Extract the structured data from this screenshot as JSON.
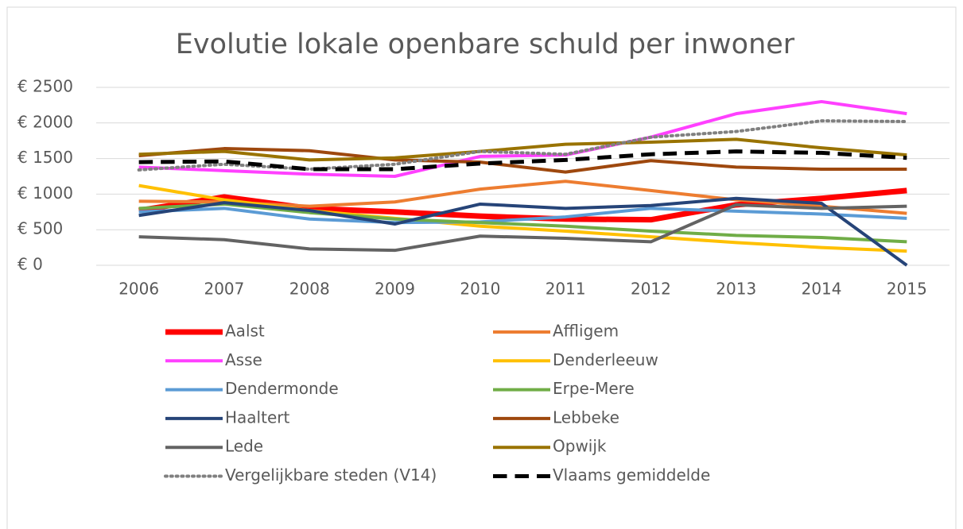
{
  "chart_data": {
    "type": "line",
    "title": "Evolutie lokale openbare schuld per inwoner",
    "categories": [
      "2006",
      "2007",
      "2008",
      "2009",
      "2010",
      "2011",
      "2012",
      "2013",
      "2014",
      "2015"
    ],
    "ylim": [
      0,
      2500
    ],
    "yticks": [
      {
        "value": 0,
        "label": "€ 0"
      },
      {
        "value": 500,
        "label": "€ 500"
      },
      {
        "value": 1000,
        "label": "€ 1000"
      },
      {
        "value": 1500,
        "label": "€ 1500"
      },
      {
        "value": 2000,
        "label": "€ 2000"
      },
      {
        "value": 2500,
        "label": "€ 2500"
      }
    ],
    "grid": true,
    "legend": "bottom",
    "series": [
      {
        "name": "Aalst",
        "color": "#ff0000",
        "line_width": 7,
        "values": [
          770,
          960,
          800,
          750,
          690,
          650,
          640,
          850,
          940,
          1050
        ]
      },
      {
        "name": "Affligem",
        "color": "#ed7d31",
        "line_width": 4,
        "values": [
          900,
          890,
          830,
          890,
          1070,
          1180,
          1050,
          920,
          830,
          730
        ]
      },
      {
        "name": "Asse",
        "color": "#ff40ff",
        "line_width": 4,
        "values": [
          1380,
          1330,
          1280,
          1250,
          1530,
          1550,
          1800,
          2130,
          2300,
          2130
        ]
      },
      {
        "name": "Denderleeuw",
        "color": "#ffc000",
        "line_width": 4,
        "values": [
          1120,
          920,
          770,
          660,
          550,
          480,
          400,
          320,
          250,
          200
        ]
      },
      {
        "name": "Dendermonde",
        "color": "#5b9bd5",
        "line_width": 4,
        "values": [
          750,
          800,
          650,
          600,
          610,
          680,
          800,
          760,
          720,
          660
        ]
      },
      {
        "name": "Erpe-Mere",
        "color": "#70ad47",
        "line_width": 4,
        "values": [
          800,
          860,
          740,
          650,
          600,
          550,
          480,
          420,
          390,
          330
        ]
      },
      {
        "name": "Haaltert",
        "color": "#264478",
        "line_width": 4,
        "values": [
          700,
          880,
          770,
          580,
          860,
          800,
          840,
          940,
          870,
          0
        ]
      },
      {
        "name": "Lebbeke",
        "color": "#9e480e",
        "line_width": 4,
        "values": [
          1540,
          1640,
          1610,
          1480,
          1450,
          1310,
          1470,
          1380,
          1350,
          1350
        ]
      },
      {
        "name": "Lede",
        "color": "#636363",
        "line_width": 4,
        "values": [
          400,
          360,
          230,
          210,
          410,
          380,
          330,
          850,
          800,
          830
        ]
      },
      {
        "name": "Opwijk",
        "color": "#997300",
        "line_width": 4,
        "values": [
          1560,
          1600,
          1480,
          1510,
          1600,
          1700,
          1730,
          1770,
          1650,
          1550
        ]
      },
      {
        "name": "Vergelijkbare steden (V14)",
        "color": "#808080",
        "line_width": 4,
        "dash": "dotted",
        "values": [
          1340,
          1420,
          1350,
          1420,
          1600,
          1560,
          1800,
          1880,
          2030,
          2020
        ]
      },
      {
        "name": "Vlaams gemiddelde",
        "color": "#000000",
        "line_width": 5,
        "dash": "dashed",
        "values": [
          1450,
          1460,
          1350,
          1350,
          1430,
          1480,
          1560,
          1600,
          1580,
          1510
        ]
      }
    ]
  }
}
